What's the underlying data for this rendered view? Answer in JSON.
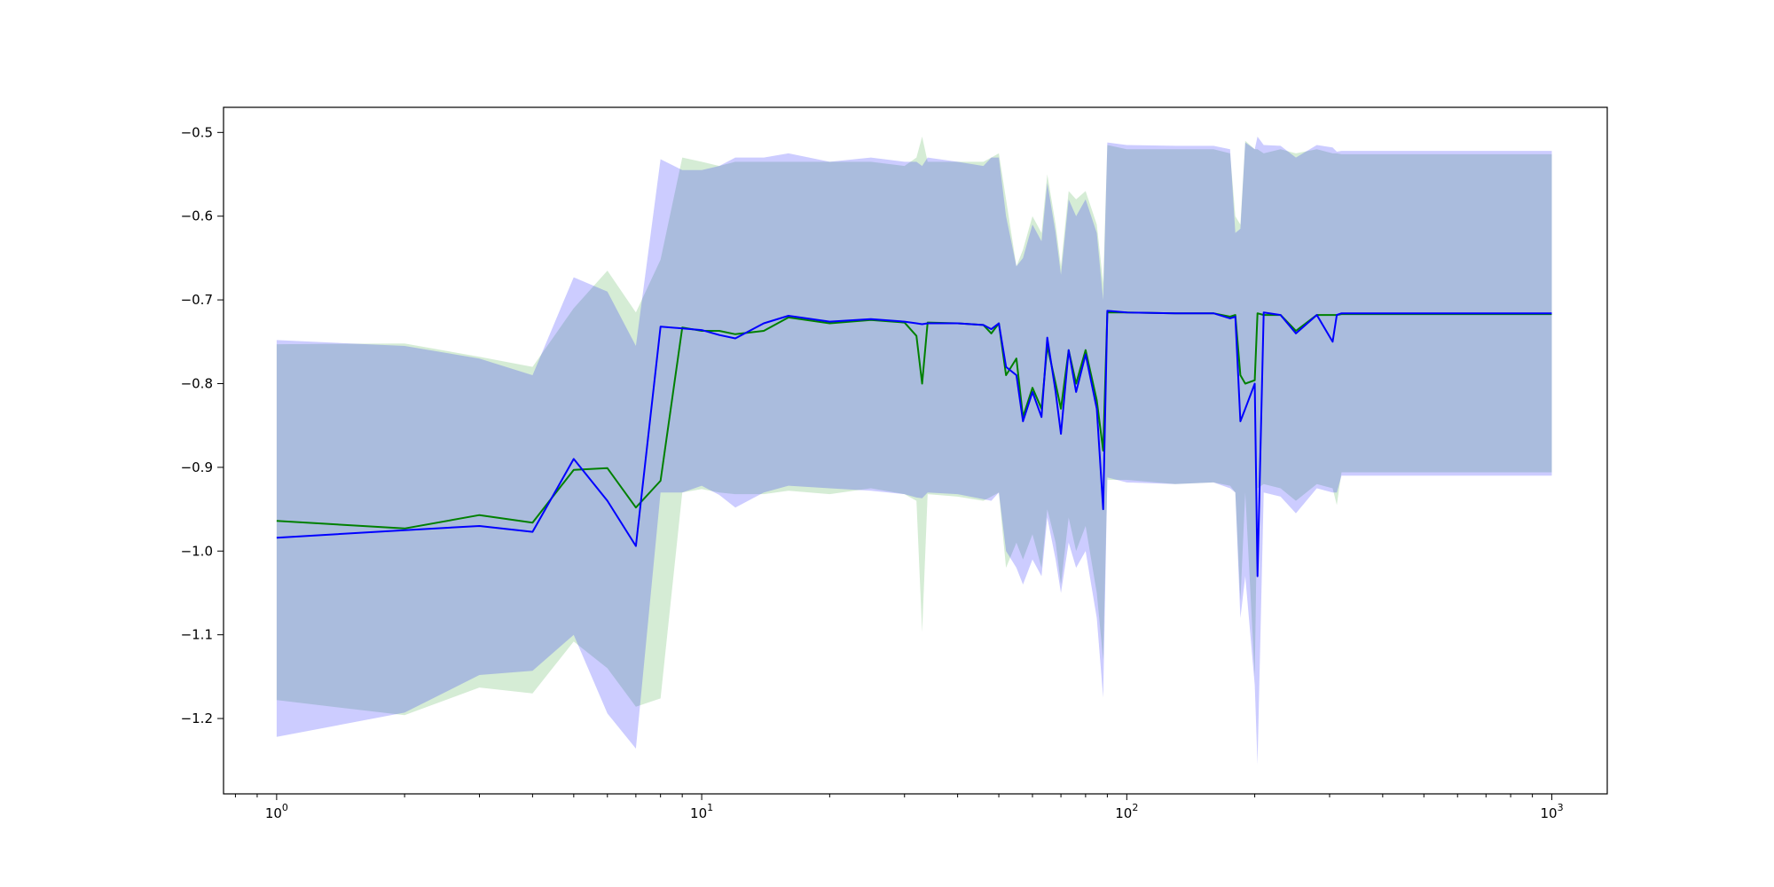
{
  "chart_data": {
    "type": "line",
    "title": "",
    "xlabel": "",
    "ylabel": "",
    "xscale": "log",
    "xlim": [
      0.75,
      1350
    ],
    "ylim": [
      -1.29,
      -0.47
    ],
    "grid": false,
    "legend": "none",
    "x_ticks": [
      {
        "value": 1,
        "base": "10",
        "exp": "0"
      },
      {
        "value": 10,
        "base": "10",
        "exp": "1"
      },
      {
        "value": 100,
        "base": "10",
        "exp": "2"
      },
      {
        "value": 1000,
        "base": "10",
        "exp": "3"
      }
    ],
    "y_ticks": [
      {
        "value": -0.5,
        "label": "−0.5"
      },
      {
        "value": -0.6,
        "label": "−0.6"
      },
      {
        "value": -0.7,
        "label": "−0.7"
      },
      {
        "value": -0.8,
        "label": "−0.8"
      },
      {
        "value": -0.9,
        "label": "−0.9"
      },
      {
        "value": -1.0,
        "label": "−1.0"
      },
      {
        "value": -1.1,
        "label": "−1.1"
      },
      {
        "value": -1.2,
        "label": "−1.2"
      }
    ],
    "series": [
      {
        "color": "#008000",
        "band_color": "#2ca02c",
        "x": [
          1,
          2,
          3,
          4,
          5,
          6,
          7,
          8,
          9,
          10,
          11,
          12,
          14,
          16,
          20,
          25,
          30,
          32,
          33,
          34,
          40,
          46,
          48,
          50,
          52,
          55,
          57,
          60,
          63,
          65,
          68,
          70,
          73,
          76,
          80,
          85,
          88,
          90,
          100,
          130,
          160,
          175,
          180,
          185,
          190,
          200,
          203,
          210,
          230,
          250,
          280,
          305,
          312,
          320,
          1000
        ],
        "y": [
          -0.964,
          -0.973,
          -0.957,
          -0.966,
          -0.903,
          -0.901,
          -0.948,
          -0.916,
          -0.733,
          -0.737,
          -0.737,
          -0.741,
          -0.737,
          -0.721,
          -0.728,
          -0.724,
          -0.727,
          -0.743,
          -0.8,
          -0.727,
          -0.728,
          -0.73,
          -0.74,
          -0.728,
          -0.79,
          -0.77,
          -0.84,
          -0.805,
          -0.83,
          -0.755,
          -0.8,
          -0.83,
          -0.76,
          -0.8,
          -0.76,
          -0.82,
          -0.88,
          -0.715,
          -0.715,
          -0.716,
          -0.716,
          -0.72,
          -0.718,
          -0.79,
          -0.8,
          -0.796,
          -0.716,
          -0.718,
          -0.718,
          -0.737,
          -0.718,
          -0.718,
          -0.718,
          -0.717,
          -0.717
        ],
        "lower": [
          -1.178,
          -1.196,
          -1.163,
          -1.17,
          -1.108,
          -1.14,
          -1.186,
          -1.176,
          -0.93,
          -0.926,
          -0.93,
          -0.932,
          -0.932,
          -0.928,
          -0.932,
          -0.925,
          -0.932,
          -0.94,
          -1.097,
          -0.932,
          -0.935,
          -0.94,
          -0.935,
          -0.93,
          -1.02,
          -0.99,
          -1.01,
          -0.98,
          -1.02,
          -0.95,
          -0.99,
          -1.04,
          -0.96,
          -1.0,
          -0.97,
          -1.05,
          -1.13,
          -0.915,
          -0.915,
          -0.92,
          -0.918,
          -0.922,
          -0.93,
          -1.06,
          -0.93,
          -1.15,
          -0.925,
          -0.92,
          -0.925,
          -0.94,
          -0.92,
          -0.925,
          -0.945,
          -0.906,
          -0.906
        ],
        "upper": [
          -0.753,
          -0.752,
          -0.768,
          -0.78,
          -0.71,
          -0.665,
          -0.715,
          -0.652,
          -0.53,
          -0.535,
          -0.54,
          -0.535,
          -0.535,
          -0.535,
          -0.535,
          -0.535,
          -0.54,
          -0.53,
          -0.505,
          -0.535,
          -0.535,
          -0.535,
          -0.53,
          -0.525,
          -0.58,
          -0.66,
          -0.64,
          -0.6,
          -0.62,
          -0.55,
          -0.61,
          -0.66,
          -0.57,
          -0.58,
          -0.57,
          -0.61,
          -0.68,
          -0.515,
          -0.52,
          -0.52,
          -0.52,
          -0.525,
          -0.6,
          -0.61,
          -0.51,
          -0.52,
          -0.52,
          -0.525,
          -0.52,
          -0.525,
          -0.52,
          -0.525,
          -0.525,
          -0.526,
          -0.526
        ]
      },
      {
        "color": "#0000ff",
        "band_color": "#0000ff",
        "x": [
          1,
          2,
          3,
          4,
          5,
          6,
          7,
          8,
          9,
          10,
          11,
          12,
          14,
          16,
          20,
          25,
          30,
          32,
          33,
          34,
          40,
          46,
          48,
          50,
          52,
          55,
          57,
          60,
          63,
          65,
          68,
          70,
          73,
          76,
          80,
          85,
          88,
          90,
          100,
          130,
          160,
          175,
          180,
          185,
          190,
          200,
          203,
          210,
          230,
          250,
          280,
          305,
          312,
          320,
          1000
        ],
        "y": [
          -0.984,
          -0.975,
          -0.97,
          -0.977,
          -0.89,
          -0.94,
          -0.994,
          -0.732,
          -0.734,
          -0.736,
          -0.742,
          -0.746,
          -0.728,
          -0.719,
          -0.726,
          -0.723,
          -0.726,
          -0.728,
          -0.729,
          -0.728,
          -0.728,
          -0.73,
          -0.735,
          -0.728,
          -0.78,
          -0.79,
          -0.845,
          -0.81,
          -0.84,
          -0.745,
          -0.81,
          -0.86,
          -0.76,
          -0.81,
          -0.765,
          -0.83,
          -0.95,
          -0.713,
          -0.715,
          -0.716,
          -0.716,
          -0.722,
          -0.72,
          -0.845,
          -0.83,
          -0.8,
          -1.03,
          -0.715,
          -0.718,
          -0.74,
          -0.718,
          -0.75,
          -0.718,
          -0.716,
          -0.716
        ],
        "lower": [
          -1.222,
          -1.193,
          -1.148,
          -1.143,
          -1.1,
          -1.194,
          -1.236,
          -0.93,
          -0.93,
          -0.922,
          -0.933,
          -0.948,
          -0.93,
          -0.922,
          -0.925,
          -0.928,
          -0.932,
          -0.936,
          -0.937,
          -0.93,
          -0.932,
          -0.938,
          -0.94,
          -0.93,
          -1.0,
          -1.02,
          -1.04,
          -1.01,
          -1.03,
          -0.96,
          -1.01,
          -1.05,
          -0.99,
          -1.02,
          -1.0,
          -1.08,
          -1.175,
          -0.912,
          -0.918,
          -0.92,
          -0.918,
          -0.925,
          -0.93,
          -1.08,
          -1.03,
          -1.16,
          -1.255,
          -0.93,
          -0.935,
          -0.955,
          -0.925,
          -0.93,
          -0.93,
          -0.91,
          -0.91
        ],
        "upper": [
          -0.748,
          -0.755,
          -0.77,
          -0.79,
          -0.673,
          -0.69,
          -0.755,
          -0.532,
          -0.545,
          -0.545,
          -0.54,
          -0.53,
          -0.53,
          -0.525,
          -0.535,
          -0.53,
          -0.535,
          -0.535,
          -0.54,
          -0.53,
          -0.535,
          -0.54,
          -0.53,
          -0.53,
          -0.6,
          -0.66,
          -0.65,
          -0.61,
          -0.63,
          -0.56,
          -0.62,
          -0.67,
          -0.58,
          -0.6,
          -0.58,
          -0.62,
          -0.7,
          -0.512,
          -0.515,
          -0.516,
          -0.516,
          -0.52,
          -0.62,
          -0.615,
          -0.512,
          -0.52,
          -0.505,
          -0.515,
          -0.516,
          -0.53,
          -0.515,
          -0.518,
          -0.523,
          -0.522,
          -0.522
        ]
      }
    ]
  }
}
